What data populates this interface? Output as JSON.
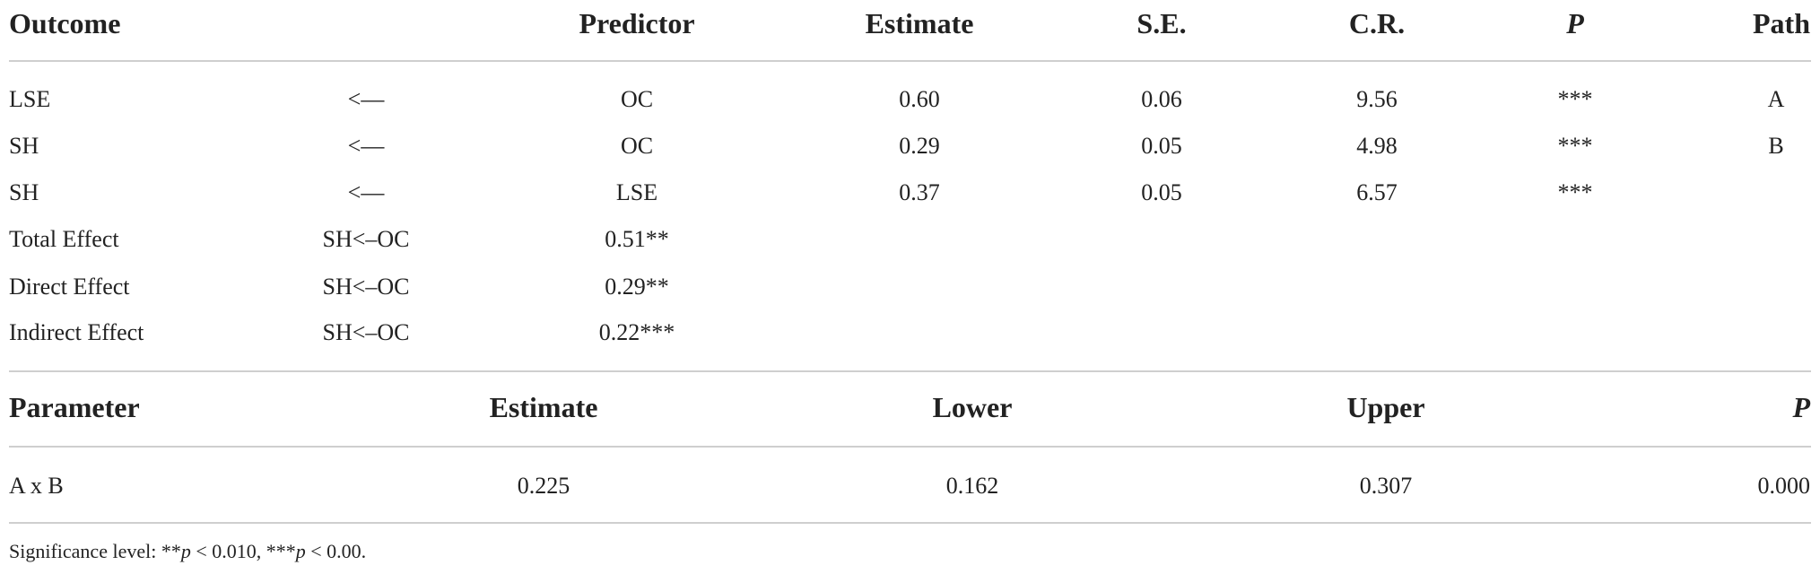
{
  "table": {
    "header": [
      "Outcome",
      "Predictor",
      "Estimate",
      "S.E.",
      "C.R.",
      "P",
      "Path"
    ],
    "rows": [
      [
        "LSE",
        "<—",
        "OC",
        "0.60",
        "0.06",
        "9.56",
        "***",
        "A"
      ],
      [
        "SH",
        "<—",
        "OC",
        "0.29",
        "0.05",
        "4.98",
        "***",
        "B"
      ],
      [
        "SH",
        "<—",
        "LSE",
        "0.37",
        "0.05",
        "6.57",
        "***"
      ],
      [
        "Total Effect",
        "SH<–OC",
        "0.51**"
      ],
      [
        "Direct Effect",
        "SH<–OC",
        "0.29**"
      ],
      [
        "Indirect Effect",
        "SH<–OC",
        "0.22***"
      ]
    ]
  },
  "table2": {
    "header": [
      "Parameter",
      "Estimate",
      "Lower",
      "Upper",
      "P"
    ],
    "rows": [
      [
        "A x B",
        "0.225",
        "0.162",
        "0.307",
        "0.000"
      ]
    ]
  },
  "footnote": [
    "Significance level: **",
    "p",
    " < 0.010, ***",
    "p",
    " < 0.00."
  ]
}
